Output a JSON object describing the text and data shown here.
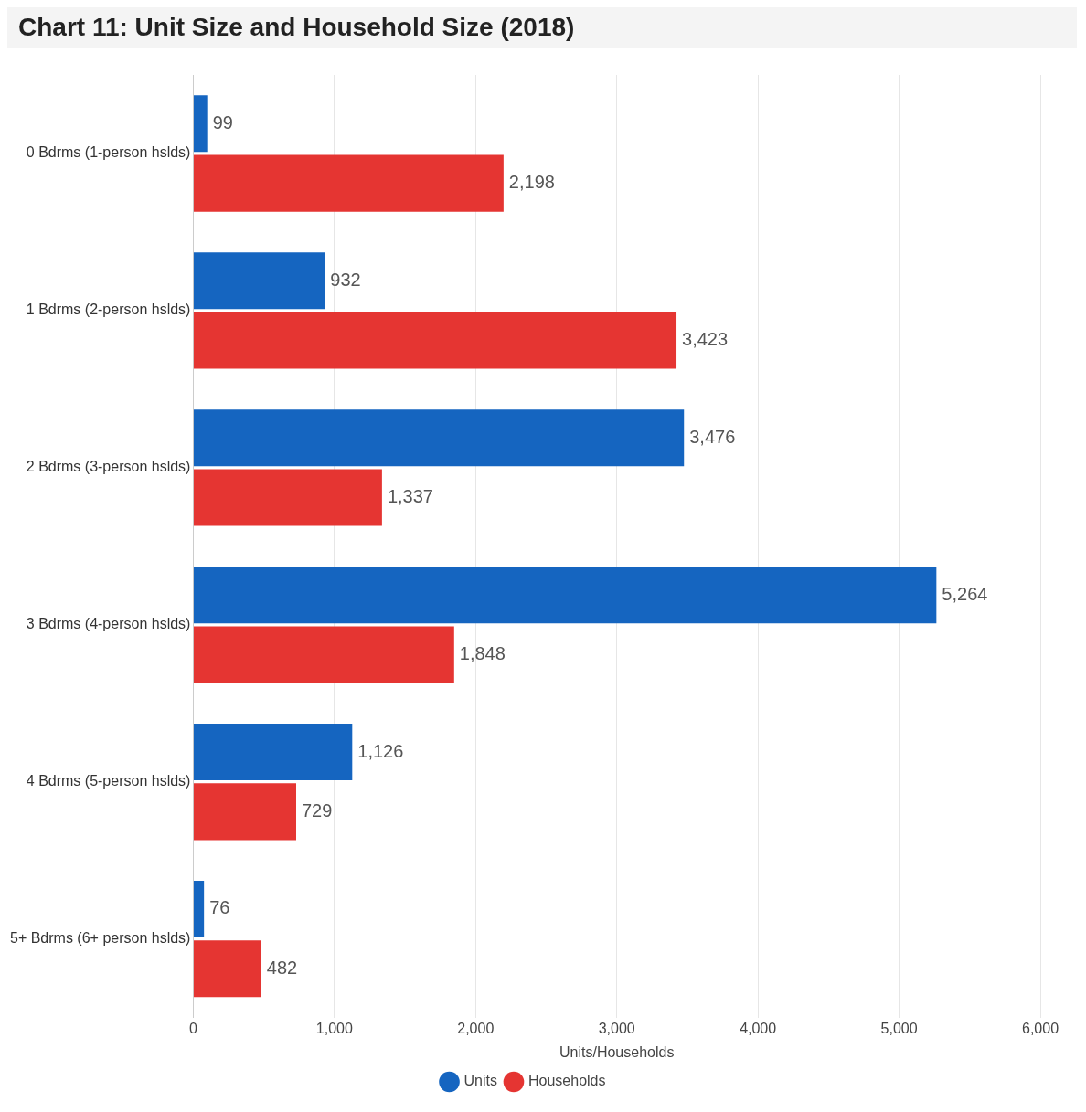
{
  "chart_data": {
    "type": "bar",
    "orientation": "horizontal",
    "title": "Chart 11: Unit Size and Household Size (2018)",
    "xlabel": "Units/Households",
    "categories": [
      "0 Bdrms (1-person hslds)",
      "1 Bdrms (2-person hslds)",
      "2 Bdrms (3-person hslds)",
      "3 Bdrms (4-person hslds)",
      "4 Bdrms (5-person hslds)",
      "5+ Bdrms (6+ person hslds)"
    ],
    "series": [
      {
        "name": "Units",
        "color": "#1565c0",
        "values": [
          99,
          932,
          3476,
          5264,
          1126,
          76
        ],
        "value_labels": [
          "99",
          "932",
          "3,476",
          "5,264",
          "1,126",
          "76"
        ]
      },
      {
        "name": "Households",
        "color": "#e53532",
        "values": [
          2198,
          3423,
          1337,
          1848,
          729,
          482
        ],
        "value_labels": [
          "2,198",
          "3,423",
          "1,337",
          "1,848",
          "729",
          "482"
        ]
      }
    ],
    "xlim": [
      0,
      6000
    ],
    "xticks": [
      0,
      {
        "value": 1000,
        "label": "1,000"
      },
      {
        "value": 2000,
        "label": "2,000"
      },
      {
        "value": 3000,
        "label": "3,000"
      },
      {
        "value": 4000,
        "label": "4,000"
      },
      {
        "value": 5000,
        "label": "5,000"
      },
      {
        "value": 6000,
        "label": "6,000"
      }
    ],
    "grid": "x",
    "legend": "bottom",
    "marker": "circle"
  }
}
